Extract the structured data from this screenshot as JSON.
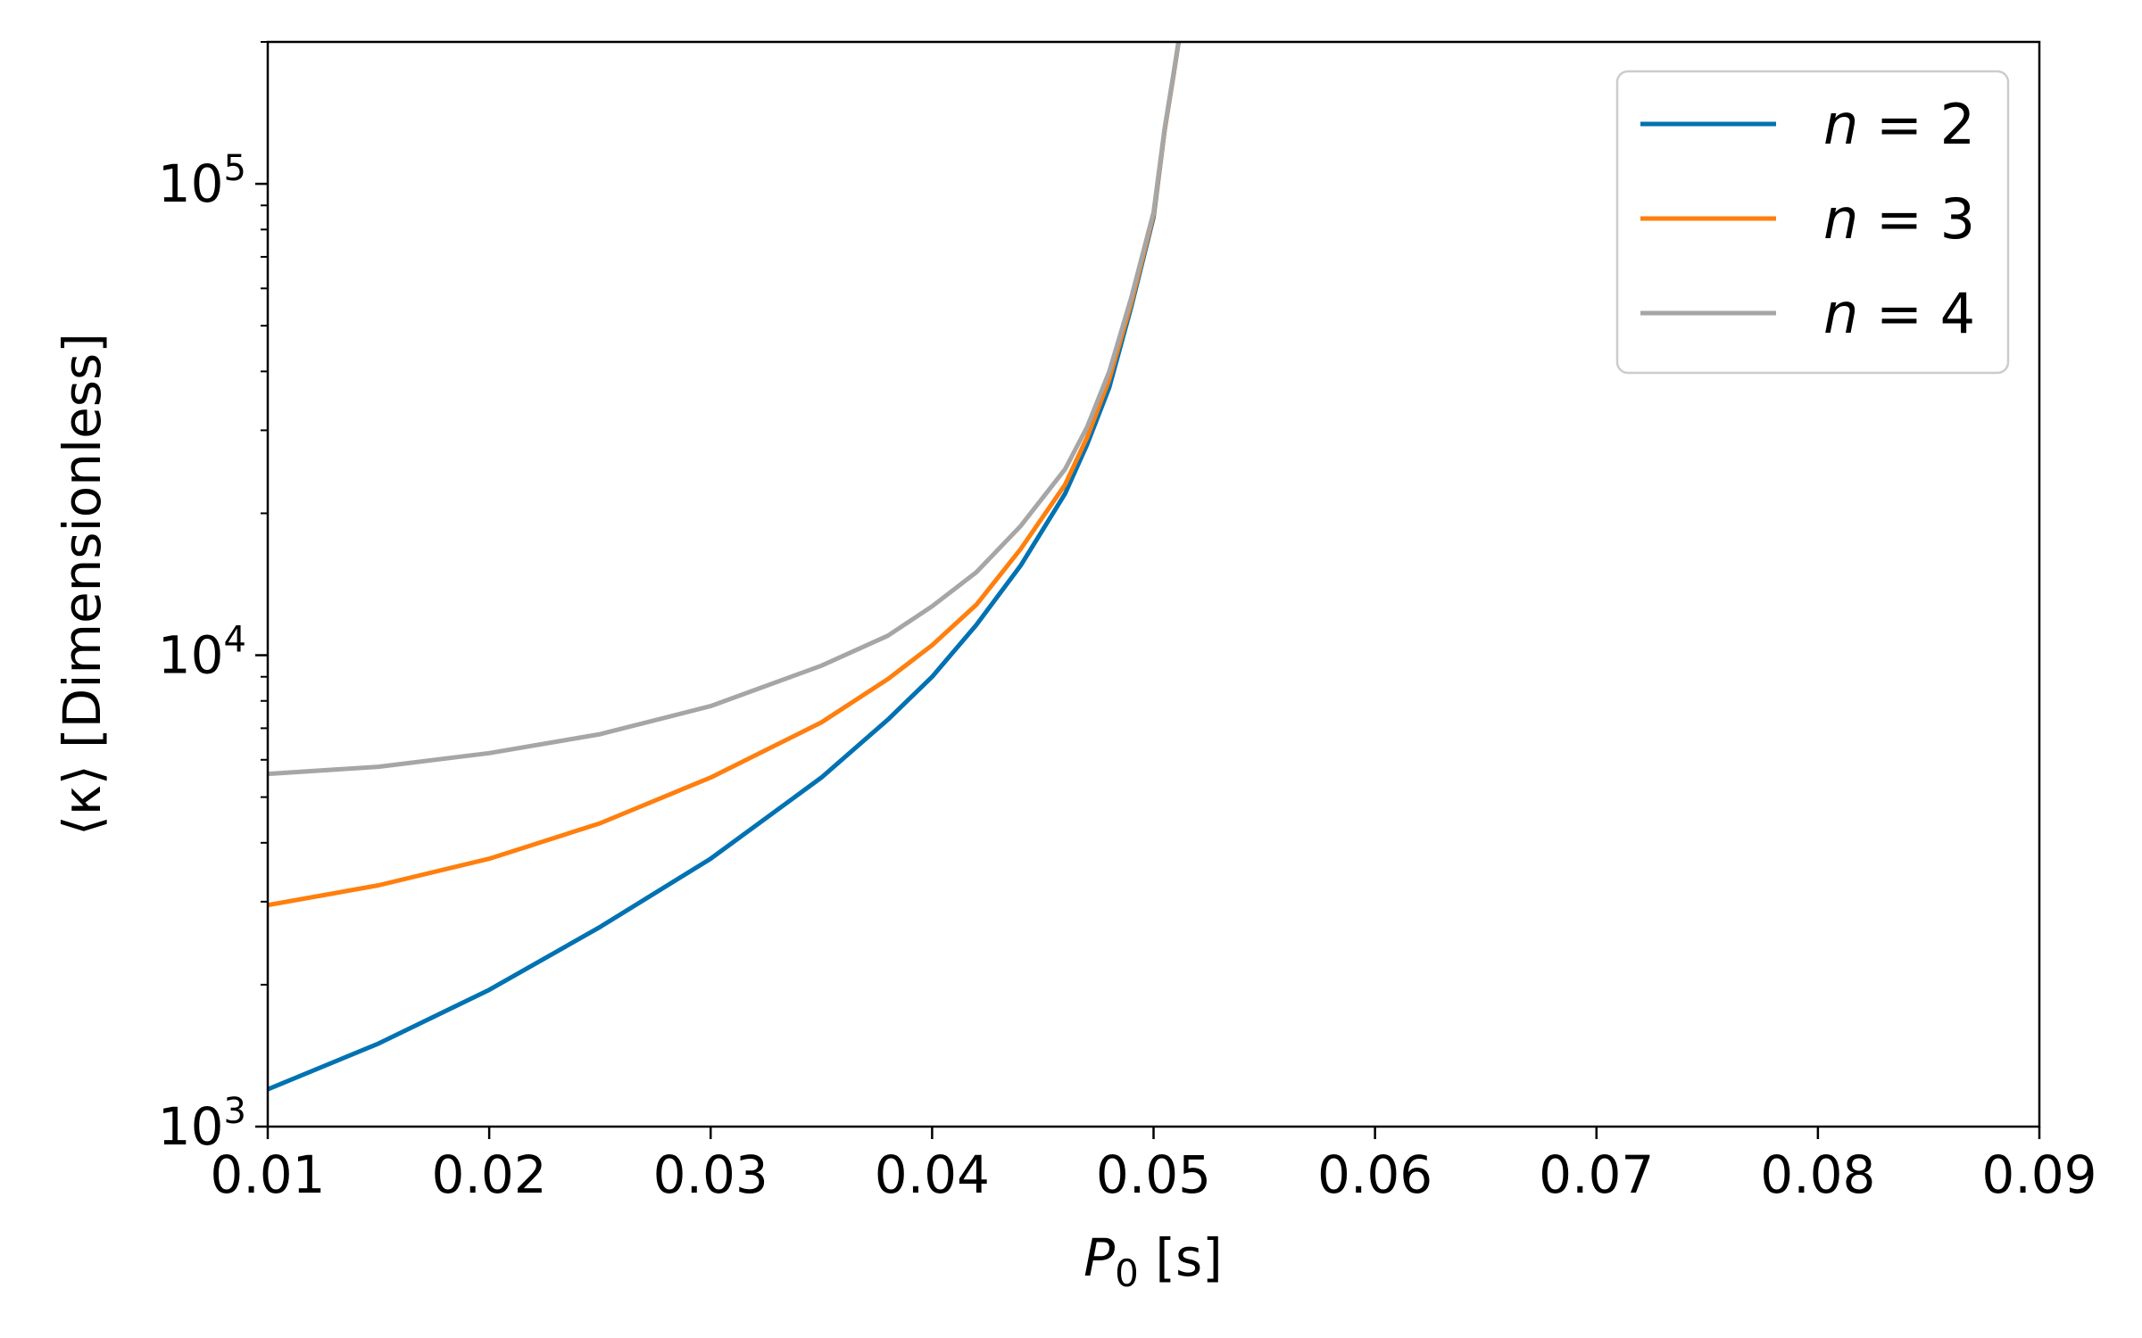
{
  "chart_data": {
    "type": "line",
    "title": "",
    "xlabel": {
      "main": "P",
      "sub": "0",
      "unit": " [s]"
    },
    "ylabel": "⟨κ⟩ [Dimensionless]",
    "xlim": [
      0.01,
      0.09
    ],
    "ylim": [
      1000,
      200000
    ],
    "yscale": "log",
    "grid": false,
    "legend_position": "top-right",
    "x_ticks": [
      {
        "value": 0.01,
        "label": "0.01"
      },
      {
        "value": 0.02,
        "label": "0.02"
      },
      {
        "value": 0.03,
        "label": "0.03"
      },
      {
        "value": 0.04,
        "label": "0.04"
      },
      {
        "value": 0.05,
        "label": "0.05"
      },
      {
        "value": 0.06,
        "label": "0.06"
      },
      {
        "value": 0.07,
        "label": "0.07"
      },
      {
        "value": 0.08,
        "label": "0.08"
      },
      {
        "value": 0.09,
        "label": "0.09"
      }
    ],
    "y_ticks": [
      {
        "value": 1000,
        "base": "10",
        "exp": "3"
      },
      {
        "value": 10000,
        "base": "10",
        "exp": "4"
      },
      {
        "value": 100000,
        "base": "10",
        "exp": "5"
      }
    ],
    "series": [
      {
        "name": "n = 2",
        "legend_var": "n",
        "legend_value": "= 2",
        "color": "#0072b2",
        "x": [
          0.01,
          0.015,
          0.02,
          0.025,
          0.03,
          0.035,
          0.038,
          0.04,
          0.042,
          0.044,
          0.046,
          0.047,
          0.048,
          0.049,
          0.05,
          0.0505,
          0.0509,
          0.0512
        ],
        "y": [
          1200,
          1500,
          1950,
          2650,
          3700,
          5500,
          7300,
          9000,
          11600,
          15500,
          22000,
          28000,
          37000,
          55000,
          85000,
          130000,
          170000,
          210000
        ]
      },
      {
        "name": "n = 3",
        "legend_var": "n",
        "legend_value": "= 3",
        "color": "#ff7f0e",
        "x": [
          0.01,
          0.015,
          0.02,
          0.025,
          0.03,
          0.035,
          0.038,
          0.04,
          0.042,
          0.044,
          0.046,
          0.047,
          0.048,
          0.049,
          0.05,
          0.0505,
          0.0509,
          0.0512
        ],
        "y": [
          2950,
          3250,
          3700,
          4400,
          5500,
          7200,
          8900,
          10500,
          12800,
          16800,
          23000,
          29000,
          38500,
          56000,
          86000,
          130000,
          170000,
          210000
        ]
      },
      {
        "name": "n = 4",
        "legend_var": "n",
        "legend_value": "= 4",
        "color": "#a6a6a6",
        "x": [
          0.01,
          0.015,
          0.02,
          0.025,
          0.03,
          0.035,
          0.038,
          0.04,
          0.042,
          0.044,
          0.046,
          0.047,
          0.048,
          0.049,
          0.05,
          0.0505,
          0.0509,
          0.0512
        ],
        "y": [
          5600,
          5800,
          6200,
          6800,
          7800,
          9500,
          11000,
          12700,
          15000,
          18800,
          24800,
          30500,
          40000,
          57500,
          87000,
          131000,
          171000,
          210000
        ]
      }
    ]
  }
}
